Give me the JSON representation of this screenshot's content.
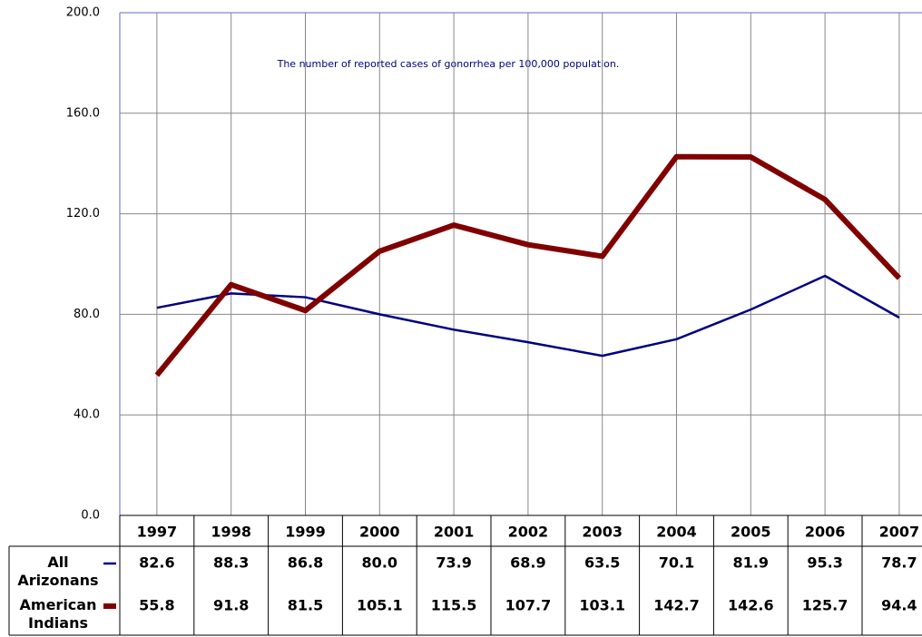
{
  "chart_data": {
    "type": "line",
    "annotation": "The number of reported cases of gonorrhea per 100,000 population.",
    "categories": [
      "1997",
      "1998",
      "1999",
      "2000",
      "2001",
      "2002",
      "2003",
      "2004",
      "2005",
      "2006",
      "2007"
    ],
    "series": [
      {
        "name": "All Arizonans",
        "color": "#000080",
        "values": [
          82.6,
          88.3,
          86.8,
          80.0,
          73.9,
          68.9,
          63.5,
          70.1,
          81.9,
          95.3,
          78.7
        ],
        "value_labels": [
          "82.6",
          "88.3",
          "86.8",
          "80.0",
          "73.9",
          "68.9",
          "63.5",
          "70.1",
          "81.9",
          "95.3",
          "78.7"
        ]
      },
      {
        "name": "American Indians",
        "color": "#800000",
        "values": [
          55.8,
          91.8,
          81.5,
          105.1,
          115.5,
          107.7,
          103.1,
          142.7,
          142.6,
          125.7,
          94.4
        ],
        "value_labels": [
          "55.8",
          "91.8",
          "81.5",
          "105.1",
          "115.5",
          "107.7",
          "103.1",
          "142.7",
          "142.6",
          "125.7",
          "94.4"
        ]
      }
    ],
    "ylim": [
      0,
      200
    ],
    "yticks": [
      {
        "value": 0,
        "label": "0.0"
      },
      {
        "value": 40,
        "label": "40.0"
      },
      {
        "value": 80,
        "label": "80.0"
      },
      {
        "value": 120,
        "label": "120.0"
      },
      {
        "value": 160,
        "label": "160.0"
      },
      {
        "value": 200,
        "label": "200.0"
      }
    ],
    "grid": true
  }
}
